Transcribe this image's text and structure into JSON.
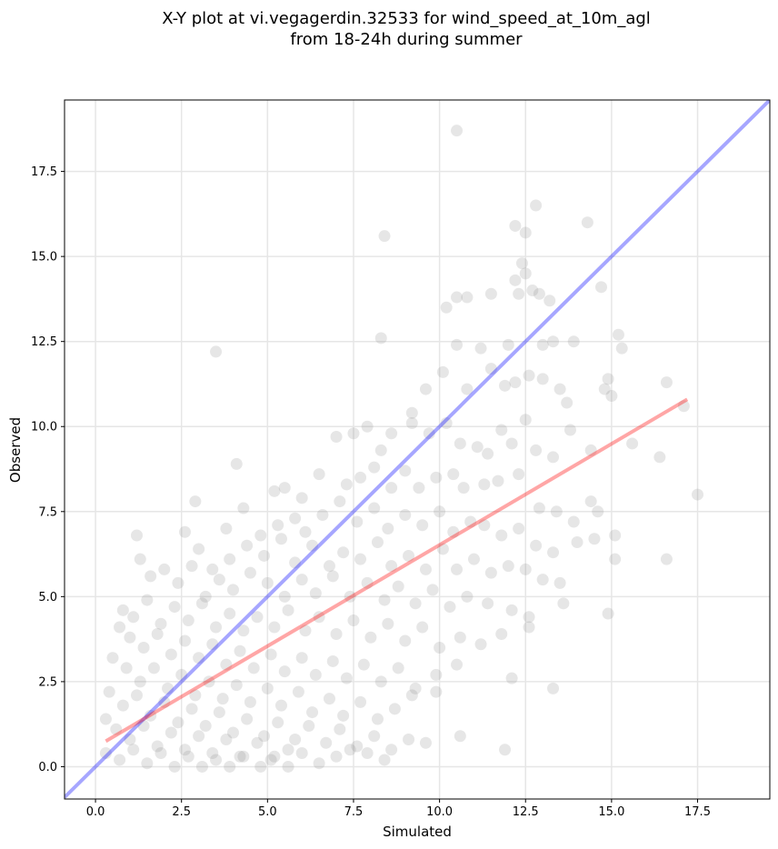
{
  "chart_data": {
    "type": "scatter",
    "title_lines": [
      "X-Y plot at vi.vegagerdin.32533 for wind_speed_at_10m_agl",
      "from 18-24h during summer"
    ],
    "xlabel": "Simulated",
    "ylabel": "Observed",
    "xlim": [
      -0.9,
      19.6
    ],
    "ylim": [
      -0.95,
      19.6
    ],
    "xticks": [
      0.0,
      2.5,
      5.0,
      7.5,
      10.0,
      12.5,
      15.0,
      17.5
    ],
    "yticks": [
      0.0,
      2.5,
      5.0,
      7.5,
      10.0,
      12.5,
      15.0,
      17.5
    ],
    "xtick_labels": [
      "0.0",
      "2.5",
      "5.0",
      "7.5",
      "10.0",
      "12.5",
      "15.0",
      "17.5"
    ],
    "ytick_labels": [
      "0.0",
      "2.5",
      "5.0",
      "7.5",
      "10.0",
      "12.5",
      "15.0",
      "17.5"
    ],
    "grid": true,
    "colors": {
      "points": "#808080",
      "identity_line": "#0000ff",
      "fit_line": "#ff0000",
      "grid": "#e6e6e6"
    },
    "identity_line": {
      "x": [
        -0.9,
        19.6
      ],
      "y": [
        -0.9,
        19.6
      ]
    },
    "fit_line": {
      "x": [
        0.3,
        17.2
      ],
      "y": [
        0.75,
        10.8
      ]
    },
    "points": [
      [
        10.5,
        18.7
      ],
      [
        8.4,
        15.6
      ],
      [
        12.2,
        15.9
      ],
      [
        12.8,
        16.5
      ],
      [
        14.3,
        16.0
      ],
      [
        12.5,
        15.7
      ],
      [
        12.4,
        14.8
      ],
      [
        10.2,
        13.5
      ],
      [
        10.5,
        13.8
      ],
      [
        10.8,
        13.8
      ],
      [
        11.5,
        13.9
      ],
      [
        12.2,
        14.3
      ],
      [
        12.3,
        13.9
      ],
      [
        12.5,
        14.5
      ],
      [
        12.7,
        14.0
      ],
      [
        12.9,
        13.9
      ],
      [
        13.2,
        13.7
      ],
      [
        14.7,
        14.1
      ],
      [
        3.5,
        12.2
      ],
      [
        8.3,
        12.6
      ],
      [
        10.5,
        12.4
      ],
      [
        11.2,
        12.3
      ],
      [
        12.0,
        12.4
      ],
      [
        13.0,
        12.4
      ],
      [
        13.3,
        12.5
      ],
      [
        13.9,
        12.5
      ],
      [
        15.2,
        12.7
      ],
      [
        15.3,
        12.3
      ],
      [
        9.2,
        10.4
      ],
      [
        9.6,
        11.1
      ],
      [
        10.1,
        11.6
      ],
      [
        10.8,
        11.1
      ],
      [
        11.5,
        11.7
      ],
      [
        11.9,
        11.2
      ],
      [
        12.2,
        11.3
      ],
      [
        12.6,
        11.5
      ],
      [
        13.0,
        11.4
      ],
      [
        13.5,
        11.1
      ],
      [
        13.7,
        10.7
      ],
      [
        14.9,
        11.4
      ],
      [
        15.0,
        10.9
      ],
      [
        14.8,
        11.1
      ],
      [
        16.6,
        11.3
      ],
      [
        17.1,
        10.6
      ],
      [
        7.5,
        9.8
      ],
      [
        7.9,
        10.0
      ],
      [
        8.3,
        9.3
      ],
      [
        8.6,
        9.8
      ],
      [
        9.2,
        10.1
      ],
      [
        9.7,
        9.8
      ],
      [
        10.2,
        10.1
      ],
      [
        10.6,
        9.5
      ],
      [
        11.1,
        9.4
      ],
      [
        11.4,
        9.2
      ],
      [
        11.8,
        9.9
      ],
      [
        12.1,
        9.5
      ],
      [
        12.5,
        10.2
      ],
      [
        12.8,
        9.3
      ],
      [
        13.3,
        9.1
      ],
      [
        13.8,
        9.9
      ],
      [
        14.4,
        9.3
      ],
      [
        15.6,
        9.5
      ],
      [
        16.4,
        9.1
      ],
      [
        17.5,
        8.0
      ],
      [
        4.1,
        8.9
      ],
      [
        5.2,
        8.1
      ],
      [
        5.5,
        8.2
      ],
      [
        6.0,
        7.9
      ],
      [
        6.5,
        8.6
      ],
      [
        7.0,
        9.7
      ],
      [
        7.3,
        8.3
      ],
      [
        7.7,
        8.5
      ],
      [
        8.1,
        8.8
      ],
      [
        8.6,
        8.2
      ],
      [
        9.0,
        8.7
      ],
      [
        9.4,
        8.2
      ],
      [
        9.9,
        8.5
      ],
      [
        10.4,
        8.6
      ],
      [
        10.7,
        8.2
      ],
      [
        11.3,
        8.3
      ],
      [
        11.7,
        8.4
      ],
      [
        12.3,
        8.6
      ],
      [
        12.9,
        7.6
      ],
      [
        13.4,
        7.5
      ],
      [
        13.9,
        7.2
      ],
      [
        14.4,
        7.8
      ],
      [
        14.6,
        7.5
      ],
      [
        15.1,
        6.8
      ],
      [
        15.1,
        6.1
      ],
      [
        16.6,
        6.1
      ],
      [
        2.9,
        7.8
      ],
      [
        3.8,
        7.0
      ],
      [
        4.3,
        7.6
      ],
      [
        4.8,
        6.8
      ],
      [
        5.3,
        7.1
      ],
      [
        5.8,
        7.3
      ],
      [
        6.1,
        6.9
      ],
      [
        6.6,
        7.4
      ],
      [
        7.1,
        7.8
      ],
      [
        7.6,
        7.2
      ],
      [
        8.1,
        7.6
      ],
      [
        8.5,
        7.0
      ],
      [
        9.0,
        7.4
      ],
      [
        9.5,
        7.1
      ],
      [
        10.0,
        7.5
      ],
      [
        10.4,
        6.9
      ],
      [
        10.9,
        7.2
      ],
      [
        11.3,
        7.1
      ],
      [
        11.8,
        6.8
      ],
      [
        12.3,
        7.0
      ],
      [
        12.8,
        6.5
      ],
      [
        13.3,
        6.3
      ],
      [
        14.0,
        6.6
      ],
      [
        14.5,
        6.7
      ],
      [
        1.2,
        6.8
      ],
      [
        2.6,
        6.9
      ],
      [
        3.0,
        6.4
      ],
      [
        3.4,
        5.8
      ],
      [
        3.9,
        6.1
      ],
      [
        4.4,
        6.5
      ],
      [
        4.9,
        6.2
      ],
      [
        5.4,
        6.7
      ],
      [
        5.8,
        6.0
      ],
      [
        6.3,
        6.5
      ],
      [
        6.8,
        5.9
      ],
      [
        7.2,
        6.3
      ],
      [
        7.7,
        6.1
      ],
      [
        8.2,
        6.6
      ],
      [
        8.6,
        5.9
      ],
      [
        9.1,
        6.2
      ],
      [
        9.6,
        5.8
      ],
      [
        10.1,
        6.4
      ],
      [
        10.5,
        5.8
      ],
      [
        11.0,
        6.1
      ],
      [
        11.5,
        5.7
      ],
      [
        12.0,
        5.9
      ],
      [
        12.5,
        5.8
      ],
      [
        13.0,
        5.5
      ],
      [
        13.5,
        5.4
      ],
      [
        1.3,
        6.1
      ],
      [
        1.6,
        5.6
      ],
      [
        2.0,
        5.8
      ],
      [
        2.4,
        5.4
      ],
      [
        2.8,
        5.9
      ],
      [
        3.2,
        5.0
      ],
      [
        3.6,
        5.5
      ],
      [
        4.0,
        5.2
      ],
      [
        4.5,
        5.7
      ],
      [
        5.0,
        5.4
      ],
      [
        5.5,
        5.0
      ],
      [
        6.0,
        5.5
      ],
      [
        6.4,
        5.1
      ],
      [
        6.9,
        5.6
      ],
      [
        7.4,
        5.0
      ],
      [
        7.9,
        5.4
      ],
      [
        8.4,
        4.9
      ],
      [
        8.8,
        5.3
      ],
      [
        9.3,
        4.8
      ],
      [
        9.8,
        5.2
      ],
      [
        10.3,
        4.7
      ],
      [
        10.8,
        5.0
      ],
      [
        11.4,
        4.8
      ],
      [
        12.1,
        4.6
      ],
      [
        12.6,
        4.4
      ],
      [
        13.6,
        4.8
      ],
      [
        14.9,
        4.5
      ],
      [
        0.8,
        4.6
      ],
      [
        1.1,
        4.4
      ],
      [
        1.5,
        4.9
      ],
      [
        1.9,
        4.2
      ],
      [
        2.3,
        4.7
      ],
      [
        2.7,
        4.3
      ],
      [
        3.1,
        4.8
      ],
      [
        3.5,
        4.1
      ],
      [
        3.9,
        4.5
      ],
      [
        4.3,
        4.0
      ],
      [
        4.7,
        4.4
      ],
      [
        5.2,
        4.1
      ],
      [
        5.6,
        4.6
      ],
      [
        6.1,
        4.0
      ],
      [
        6.5,
        4.4
      ],
      [
        7.0,
        3.9
      ],
      [
        7.5,
        4.3
      ],
      [
        8.0,
        3.8
      ],
      [
        8.5,
        4.2
      ],
      [
        9.0,
        3.7
      ],
      [
        9.5,
        4.1
      ],
      [
        10.0,
        3.5
      ],
      [
        10.6,
        3.8
      ],
      [
        11.2,
        3.6
      ],
      [
        11.8,
        3.9
      ],
      [
        12.6,
        4.1
      ],
      [
        0.7,
        4.1
      ],
      [
        1.0,
        3.8
      ],
      [
        1.4,
        3.5
      ],
      [
        1.8,
        3.9
      ],
      [
        2.2,
        3.3
      ],
      [
        2.6,
        3.7
      ],
      [
        3.0,
        3.2
      ],
      [
        3.4,
        3.6
      ],
      [
        3.8,
        3.0
      ],
      [
        4.2,
        3.4
      ],
      [
        4.6,
        2.9
      ],
      [
        5.1,
        3.3
      ],
      [
        5.5,
        2.8
      ],
      [
        6.0,
        3.2
      ],
      [
        6.4,
        2.7
      ],
      [
        6.9,
        3.1
      ],
      [
        7.3,
        2.6
      ],
      [
        7.8,
        3.0
      ],
      [
        8.3,
        2.5
      ],
      [
        8.8,
        2.9
      ],
      [
        9.3,
        2.3
      ],
      [
        9.9,
        2.7
      ],
      [
        10.5,
        3.0
      ],
      [
        12.1,
        2.6
      ],
      [
        13.3,
        2.3
      ],
      [
        0.5,
        3.2
      ],
      [
        0.9,
        2.9
      ],
      [
        1.3,
        2.5
      ],
      [
        1.7,
        2.9
      ],
      [
        2.1,
        2.3
      ],
      [
        2.5,
        2.7
      ],
      [
        2.9,
        2.1
      ],
      [
        3.3,
        2.5
      ],
      [
        3.7,
        2.0
      ],
      [
        4.1,
        2.4
      ],
      [
        4.5,
        1.9
      ],
      [
        5.0,
        2.3
      ],
      [
        5.4,
        1.8
      ],
      [
        5.9,
        2.2
      ],
      [
        6.3,
        1.6
      ],
      [
        6.8,
        2.0
      ],
      [
        7.2,
        1.5
      ],
      [
        7.7,
        1.9
      ],
      [
        8.2,
        1.4
      ],
      [
        8.7,
        1.7
      ],
      [
        9.2,
        2.1
      ],
      [
        9.9,
        2.2
      ],
      [
        0.4,
        2.2
      ],
      [
        0.8,
        1.8
      ],
      [
        1.2,
        2.1
      ],
      [
        1.6,
        1.5
      ],
      [
        2.0,
        1.9
      ],
      [
        2.4,
        1.3
      ],
      [
        2.8,
        1.7
      ],
      [
        3.2,
        1.2
      ],
      [
        3.6,
        1.6
      ],
      [
        4.0,
        1.0
      ],
      [
        4.4,
        1.4
      ],
      [
        4.9,
        0.9
      ],
      [
        5.3,
        1.3
      ],
      [
        5.8,
        0.8
      ],
      [
        6.2,
        1.2
      ],
      [
        6.7,
        0.7
      ],
      [
        7.1,
        1.1
      ],
      [
        7.6,
        0.6
      ],
      [
        8.1,
        0.9
      ],
      [
        8.6,
        0.5
      ],
      [
        9.1,
        0.8
      ],
      [
        9.6,
        0.7
      ],
      [
        10.6,
        0.9
      ],
      [
        11.9,
        0.5
      ],
      [
        0.3,
        1.4
      ],
      [
        0.6,
        1.1
      ],
      [
        1.0,
        0.8
      ],
      [
        1.4,
        1.2
      ],
      [
        1.8,
        0.6
      ],
      [
        2.2,
        1.0
      ],
      [
        2.6,
        0.5
      ],
      [
        3.0,
        0.9
      ],
      [
        3.4,
        0.4
      ],
      [
        3.8,
        0.8
      ],
      [
        4.2,
        0.3
      ],
      [
        4.7,
        0.7
      ],
      [
        5.1,
        0.2
      ],
      [
        5.6,
        0.5
      ],
      [
        6.0,
        0.4
      ],
      [
        6.5,
        0.1
      ],
      [
        7.0,
        0.3
      ],
      [
        7.4,
        0.5
      ],
      [
        7.9,
        0.4
      ],
      [
        8.4,
        0.2
      ],
      [
        0.3,
        0.4
      ],
      [
        0.7,
        0.2
      ],
      [
        1.1,
        0.5
      ],
      [
        1.5,
        0.1
      ],
      [
        1.9,
        0.4
      ],
      [
        2.3,
        0.0
      ],
      [
        2.7,
        0.3
      ],
      [
        3.1,
        0.0
      ],
      [
        3.5,
        0.2
      ],
      [
        3.9,
        0.0
      ],
      [
        4.3,
        0.3
      ],
      [
        4.8,
        0.0
      ],
      [
        5.2,
        0.3
      ],
      [
        5.6,
        0.0
      ]
    ]
  }
}
